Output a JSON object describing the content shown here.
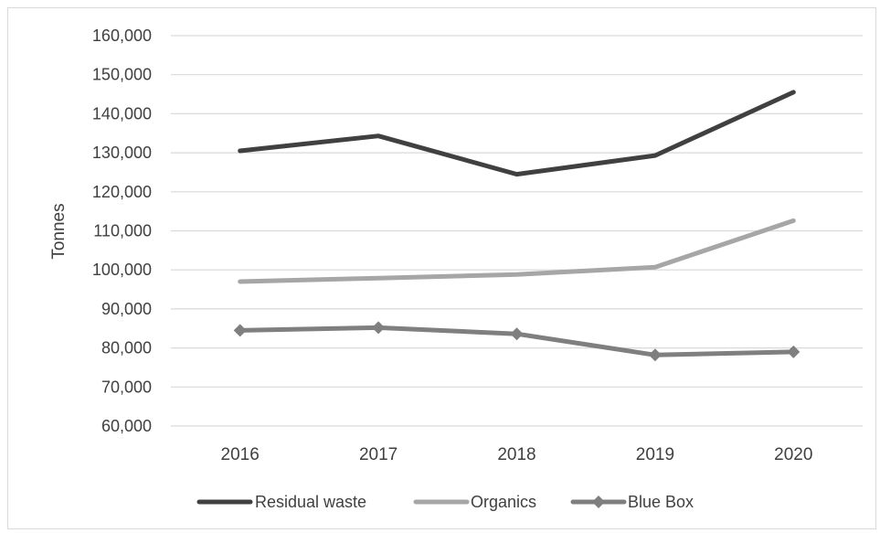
{
  "chart_data": {
    "type": "line",
    "title": "",
    "xlabel": "",
    "ylabel": "Tonnes",
    "categories": [
      "2016",
      "2017",
      "2018",
      "2019",
      "2020"
    ],
    "ylim": [
      60000,
      160000
    ],
    "yticks": [
      60000,
      70000,
      80000,
      90000,
      100000,
      110000,
      120000,
      130000,
      140000,
      150000,
      160000
    ],
    "ytick_labels": [
      "60,000",
      "70,000",
      "80,000",
      "90,000",
      "100,000",
      "110,000",
      "120,000",
      "130,000",
      "140,000",
      "150,000",
      "160,000"
    ],
    "grid": true,
    "legend_position": "bottom",
    "series": [
      {
        "name": "Residual waste",
        "values": [
          130500,
          134300,
          124500,
          129300,
          145500
        ],
        "color": "#404040",
        "marker": "none"
      },
      {
        "name": "Organics",
        "values": [
          97000,
          97900,
          98800,
          100700,
          112600
        ],
        "color": "#a6a6a6",
        "marker": "none"
      },
      {
        "name": "Blue Box",
        "values": [
          84500,
          85200,
          83600,
          78200,
          79000
        ],
        "color": "#7f7f7f",
        "marker": "diamond"
      }
    ]
  }
}
